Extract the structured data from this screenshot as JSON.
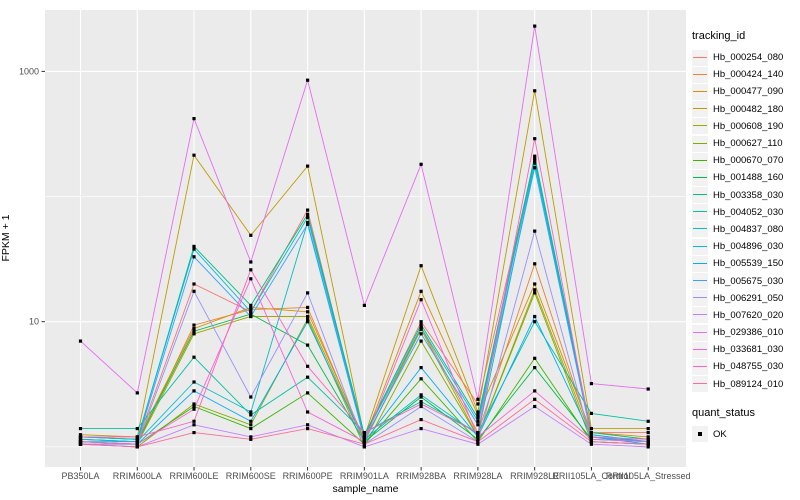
{
  "figure": {
    "background": "#FFFFFF",
    "panel_background": "#EBEBEB",
    "grid_color": "#FFFFFF",
    "axis_text_color": "#4D4D4D",
    "tick_color": "#333333"
  },
  "chart_data": {
    "type": "line",
    "title": "",
    "xlabel": "sample_name",
    "ylabel": "FPKM + 1",
    "y_scale": "log10",
    "y_ticks": [
      10,
      1000
    ],
    "y_minor_gridlines": [
      1,
      100
    ],
    "ylim": [
      1,
      3000
    ],
    "legend_position": "right",
    "grid": true,
    "point_marker": {
      "shape": "square",
      "color": "#000000",
      "meaning": "quant_status OK"
    },
    "categories": [
      "PB350LA",
      "RRIM600LA",
      "RRIM600LE",
      "RRIM600SE",
      "RRIM600PE",
      "RRIM901LA",
      "RRIM928BA",
      "RRIM928LA",
      "RRIM928LE",
      "RRII105LA_Control",
      "RRII105LA_Stressed"
    ],
    "series": [
      {
        "name": "Hb_000254_080",
        "color": "#F8766D",
        "values": [
          1.15,
          1.1,
          20,
          12,
          78,
          1.2,
          10,
          2.2,
          200,
          1.3,
          1.3
        ]
      },
      {
        "name": "Hb_000424_140",
        "color": "#EA8331",
        "values": [
          1.1,
          1.05,
          9.4,
          12.5,
          13,
          1.1,
          9,
          1.3,
          29,
          1.2,
          1.1
        ]
      },
      {
        "name": "Hb_000477_090",
        "color": "#D89000",
        "values": [
          1.2,
          1.15,
          8.8,
          13,
          12,
          1.15,
          17.5,
          1.8,
          20,
          1.3,
          1.2
        ]
      },
      {
        "name": "Hb_000482_180",
        "color": "#C09B00",
        "values": [
          1.25,
          1.2,
          214,
          49,
          175,
          1.2,
          28,
          1.9,
          700,
          1.4,
          1.4
        ]
      },
      {
        "name": "Hb_000608_190",
        "color": "#A3A500",
        "values": [
          1.1,
          1.05,
          8,
          11,
          11,
          1.1,
          8.7,
          1.2,
          18,
          1.2,
          1.1
        ]
      },
      {
        "name": "Hb_000627_110",
        "color": "#7CAE00",
        "values": [
          1.05,
          1,
          2.2,
          1.5,
          10.5,
          1,
          7,
          1.2,
          17,
          1.1,
          1.05
        ]
      },
      {
        "name": "Hb_000670_070",
        "color": "#39B600",
        "values": [
          1.1,
          1.05,
          2.1,
          1.4,
          2.7,
          1.05,
          3.5,
          1.1,
          5.1,
          1.1,
          1.05
        ]
      },
      {
        "name": "Hb_001488_160",
        "color": "#00BB4E",
        "values": [
          1.15,
          1.1,
          8.4,
          11.5,
          6.5,
          1.1,
          2.5,
          1.15,
          4.3,
          1.15,
          1.1
        ]
      },
      {
        "name": "Hb_003358_030",
        "color": "#00BF7D",
        "values": [
          1.2,
          1.15,
          40,
          13.5,
          72,
          1.25,
          9.5,
          1.7,
          210,
          1.3,
          1.15
        ]
      },
      {
        "name": "Hb_004052_030",
        "color": "#00C1A3",
        "values": [
          1.4,
          1.4,
          5.2,
          1.8,
          3.6,
          1.3,
          2.3,
          1.3,
          10,
          1.85,
          1.6
        ]
      },
      {
        "name": "Hb_004837_080",
        "color": "#00BFC4",
        "values": [
          1.15,
          1.1,
          3.3,
          1.9,
          62,
          1.15,
          2.6,
          1.25,
          185,
          1.25,
          1.1
        ]
      },
      {
        "name": "Hb_004896_030",
        "color": "#00BAE0",
        "values": [
          1.2,
          1.15,
          38,
          12,
          68,
          1.2,
          9,
          1.6,
          195,
          1.25,
          1.1
        ]
      },
      {
        "name": "Hb_005539_150",
        "color": "#00B0F6",
        "values": [
          1.05,
          1.05,
          2.8,
          1.6,
          10,
          1.1,
          4.3,
          1.2,
          11,
          1.2,
          1.05
        ]
      },
      {
        "name": "Hb_005675_030",
        "color": "#35A2FF",
        "values": [
          1.1,
          1.1,
          33,
          11,
          60,
          1.15,
          8,
          1.5,
          170,
          1.2,
          1.1
        ]
      },
      {
        "name": "Hb_006291_050",
        "color": "#9590FF",
        "values": [
          1.05,
          1.05,
          17.5,
          2.5,
          17,
          1.05,
          2.1,
          1.1,
          53,
          1.1,
          1.05
        ]
      },
      {
        "name": "Hb_007620_020",
        "color": "#C77CFF",
        "values": [
          1.05,
          1,
          1.5,
          1.2,
          1.5,
          1,
          1.4,
          1.05,
          2.1,
          1.05,
          1
        ]
      },
      {
        "name": "Hb_029386_010",
        "color": "#E76BF3",
        "values": [
          7,
          2.7,
          420,
          30,
          850,
          13.5,
          181,
          2.4,
          2300,
          3.2,
          2.9
        ]
      },
      {
        "name": "Hb_033681_030",
        "color": "#FA62DB",
        "values": [
          1.1,
          1.05,
          2,
          22,
          1.9,
          1.1,
          15,
          1.2,
          2.8,
          1.15,
          1.1
        ]
      },
      {
        "name": "Hb_048755_030",
        "color": "#FF62BC",
        "values": [
          1.2,
          1.2,
          1.6,
          26,
          4.4,
          1.3,
          2.2,
          1.3,
          290,
          1.2,
          1.15
        ]
      },
      {
        "name": "Hb_089124_010",
        "color": "#FF6A98",
        "values": [
          1.05,
          1,
          1.3,
          1.15,
          1.4,
          1.05,
          1.65,
          1.1,
          2.4,
          1.1,
          1.05
        ]
      }
    ]
  },
  "legend": {
    "tracking": {
      "title": "tracking_id"
    },
    "quant": {
      "title": "quant_status",
      "ok_label": "OK"
    },
    "key_background": "#F2F2F2"
  }
}
